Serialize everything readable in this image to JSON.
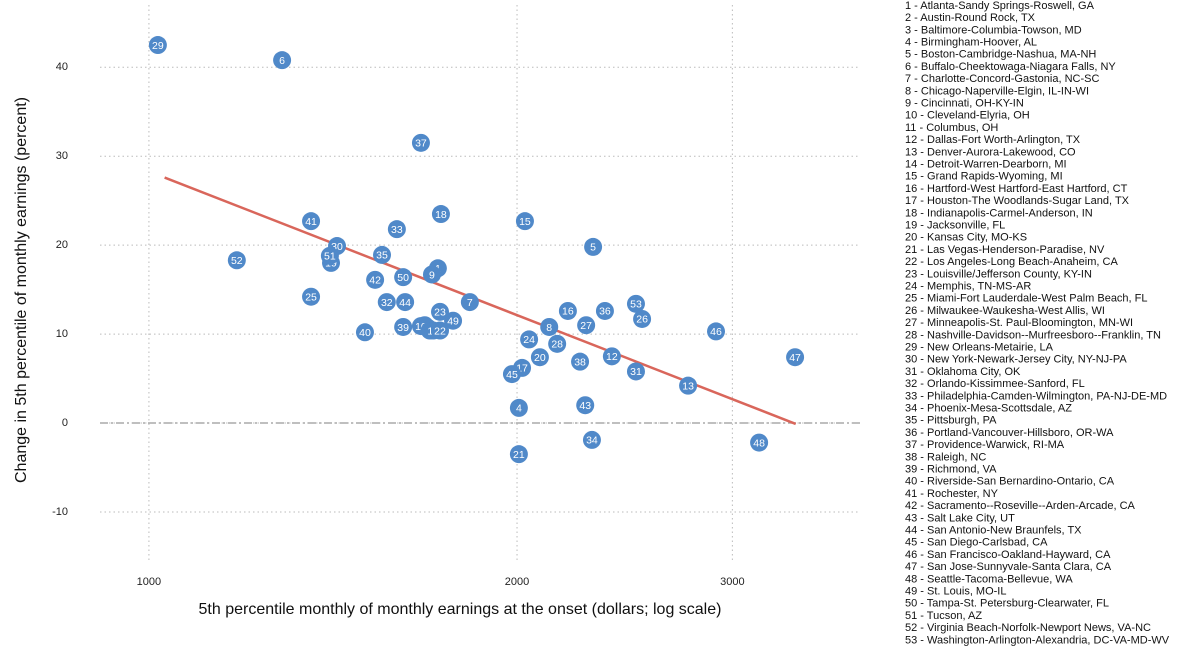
{
  "chart_data": {
    "type": "scatter",
    "x_label": "5th percentile monthly of monthly earnings at the onset (dollars; log scale)",
    "y_label": "Change in 5th percentile of monthly earnings (percent)",
    "log_x": true,
    "grid": true,
    "color": "#5089c9",
    "xlim": [
      912,
      3815
    ],
    "xticks": [
      1000,
      2000,
      3000
    ],
    "ylim": [
      -15.4,
      47
    ],
    "yticks": [
      -10,
      0,
      10,
      20,
      30,
      40
    ],
    "point_labels": [
      "1",
      "2",
      "3",
      "4",
      "5",
      "6",
      "7",
      "8",
      "9",
      "10",
      "11",
      "12",
      "13",
      "14",
      "15",
      "16",
      "17",
      "18",
      "19",
      "20",
      "21",
      "22",
      "23",
      "24",
      "25",
      "26",
      "27",
      "28",
      "29",
      "30",
      "31",
      "32",
      "33",
      "34",
      "35",
      "36",
      "37",
      "38",
      "39",
      "40",
      "41",
      "42",
      "43",
      "44",
      "45",
      "46",
      "47",
      "48",
      "49",
      "50",
      "51",
      "52",
      "53"
    ],
    "x": [
      1723,
      1691,
      1681,
      2007,
      2308,
      1285,
      1830,
      2125,
      1704,
      1669,
      1697,
      2391,
      2760,
      1708,
      2030,
      2201,
      2019,
      1733,
      1409,
      2088,
      2007,
      1730,
      1730,
      2046,
      1357,
      2531,
      2278,
      2157,
      1017,
      1425,
      2502,
      1565,
      1595,
      2303,
      1551,
      2360,
      1669,
      2252,
      1614,
      1502,
      1357,
      1531,
      2274,
      1620,
      1981,
      2909,
      3376,
      3155,
      1773,
      1614,
      1406,
      1180,
      2502
    ],
    "values": [
      17.4,
      10.7,
      11.0,
      1.7,
      19.8,
      40.8,
      13.6,
      10.8,
      16.7,
      10.9,
      10.4,
      7.5,
      4.2,
      10.4,
      22.7,
      12.6,
      6.2,
      23.5,
      18.0,
      7.4,
      -3.5,
      10.4,
      12.5,
      9.4,
      14.2,
      11.7,
      11.0,
      8.9,
      42.5,
      19.9,
      5.8,
      13.6,
      21.8,
      -1.9,
      18.9,
      12.6,
      31.5,
      6.9,
      10.8,
      10.2,
      22.7,
      16.1,
      2.0,
      13.6,
      5.5,
      10.3,
      7.4,
      -2.2,
      11.5,
      16.4,
      18.8,
      18.3,
      13.4
    ],
    "fit_line": {
      "x": [
        1030,
        3380
      ],
      "values": [
        27.6,
        -0.1
      ],
      "color": "#d9665b"
    },
    "reference_line": 0,
    "legend_entries": [
      "1 - Atlanta-Sandy Springs-Roswell, GA",
      "2 - Austin-Round Rock, TX",
      "3 - Baltimore-Columbia-Towson, MD",
      "4 - Birmingham-Hoover, AL",
      "5 - Boston-Cambridge-Nashua, MA-NH",
      "6 - Buffalo-Cheektowaga-Niagara Falls, NY",
      "7 - Charlotte-Concord-Gastonia, NC-SC",
      "8 - Chicago-Naperville-Elgin, IL-IN-WI",
      "9 - Cincinnati, OH-KY-IN",
      "10 - Cleveland-Elyria, OH",
      "11 - Columbus, OH",
      "12 - Dallas-Fort Worth-Arlington, TX",
      "13 - Denver-Aurora-Lakewood, CO",
      "14 - Detroit-Warren-Dearborn, MI",
      "15 - Grand Rapids-Wyoming, MI",
      "16 - Hartford-West Hartford-East Hartford, CT",
      "17 - Houston-The Woodlands-Sugar Land, TX",
      "18 - Indianapolis-Carmel-Anderson, IN",
      "19 - Jacksonville, FL",
      "20 - Kansas City, MO-KS",
      "21 - Las Vegas-Henderson-Paradise, NV",
      "22 - Los Angeles-Long Beach-Anaheim, CA",
      "23 - Louisville/Jefferson County, KY-IN",
      "24 - Memphis, TN-MS-AR",
      "25 - Miami-Fort Lauderdale-West Palm Beach, FL",
      "26 - Milwaukee-Waukesha-West Allis, WI",
      "27 - Minneapolis-St. Paul-Bloomington, MN-WI",
      "28 - Nashville-Davidson--Murfreesboro--Franklin, TN",
      "29 - New Orleans-Metairie, LA",
      "30 - New York-Newark-Jersey City, NY-NJ-PA",
      "31 - Oklahoma City, OK",
      "32 - Orlando-Kissimmee-Sanford, FL",
      "33 - Philadelphia-Camden-Wilmington, PA-NJ-DE-MD",
      "34 - Phoenix-Mesa-Scottsdale, AZ",
      "35 - Pittsburgh, PA",
      "36 - Portland-Vancouver-Hillsboro, OR-WA",
      "37 - Providence-Warwick, RI-MA",
      "38 - Raleigh, NC",
      "39 - Richmond, VA",
      "40 - Riverside-San Bernardino-Ontario, CA",
      "41 - Rochester, NY",
      "42 - Sacramento--Roseville--Arden-Arcade, CA",
      "43 - Salt Lake City, UT",
      "44 - San Antonio-New Braunfels, TX",
      "45 - San Diego-Carlsbad, CA",
      "46 - San Francisco-Oakland-Hayward, CA",
      "47 - San Jose-Sunnyvale-Santa Clara, CA",
      "48 - Seattle-Tacoma-Bellevue, WA",
      "49 - St. Louis, MO-IL",
      "50 - Tampa-St. Petersburg-Clearwater, FL",
      "51 - Tucson, AZ",
      "52 - Virginia Beach-Norfolk-Newport News, VA-NC",
      "53 - Washington-Arlington-Alexandria, DC-VA-MD-WV"
    ]
  }
}
